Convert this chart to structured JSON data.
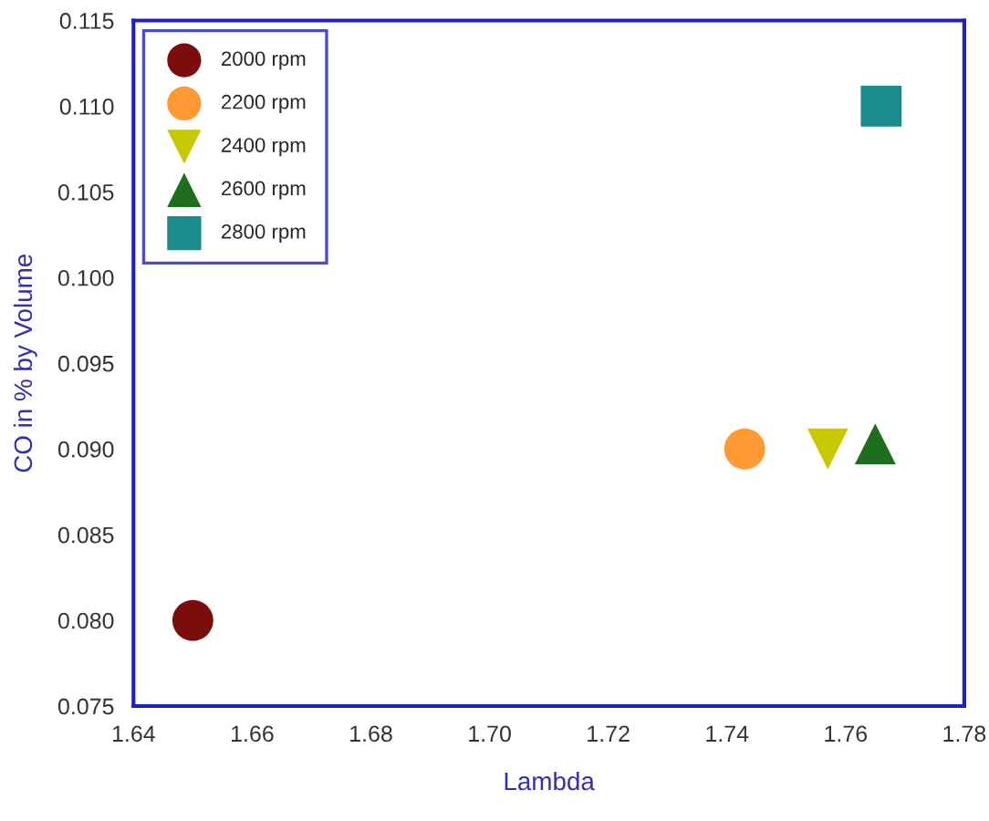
{
  "chart_data": {
    "type": "scatter",
    "xlabel": "Lambda",
    "ylabel": "CO in % by Volume",
    "series": [
      {
        "name": "2000 rpm",
        "color": "#7b0d0d",
        "marker": "circle",
        "x": [
          1.65
        ],
        "values": [
          0.08
        ]
      },
      {
        "name": "2200 rpm",
        "color": "#ff9933",
        "marker": "circle",
        "x": [
          1.743
        ],
        "values": [
          0.09
        ]
      },
      {
        "name": "2400 rpm",
        "color": "#c8c800",
        "marker": "triangle_down",
        "x": [
          1.757
        ],
        "values": [
          0.09
        ]
      },
      {
        "name": "2600 rpm",
        "color": "#1e6e1e",
        "marker": "triangle",
        "x": [
          1.765
        ],
        "values": [
          0.0903
        ]
      },
      {
        "name": "2800 rpm",
        "color": "#1a8c8c",
        "marker": "square",
        "x": [
          1.766
        ],
        "values": [
          0.11
        ]
      }
    ],
    "xlim": [
      1.64,
      1.78
    ],
    "xticks": [
      {
        "value": 1.64,
        "label": "1.64"
      },
      {
        "value": 1.66,
        "label": "1.66"
      },
      {
        "value": 1.68,
        "label": "1.68"
      },
      {
        "value": 1.7,
        "label": "1.70"
      },
      {
        "value": 1.72,
        "label": "1.72"
      },
      {
        "value": 1.74,
        "label": "1.74"
      },
      {
        "value": 1.76,
        "label": "1.76"
      },
      {
        "value": 1.78,
        "label": "1.78"
      }
    ],
    "ylim": [
      0.075,
      0.115
    ],
    "yticks": [
      {
        "value": 0.075,
        "label": "0.075"
      },
      {
        "value": 0.08,
        "label": "0.080"
      },
      {
        "value": 0.085,
        "label": "0.085"
      },
      {
        "value": 0.09,
        "label": "0.090"
      },
      {
        "value": 0.095,
        "label": "0.095"
      },
      {
        "value": 0.1,
        "label": "0.100"
      },
      {
        "value": 0.105,
        "label": "0.105"
      },
      {
        "value": 0.11,
        "label": "0.110"
      },
      {
        "value": 0.115,
        "label": "0.115"
      }
    ],
    "grid": false,
    "legend": "top left"
  }
}
